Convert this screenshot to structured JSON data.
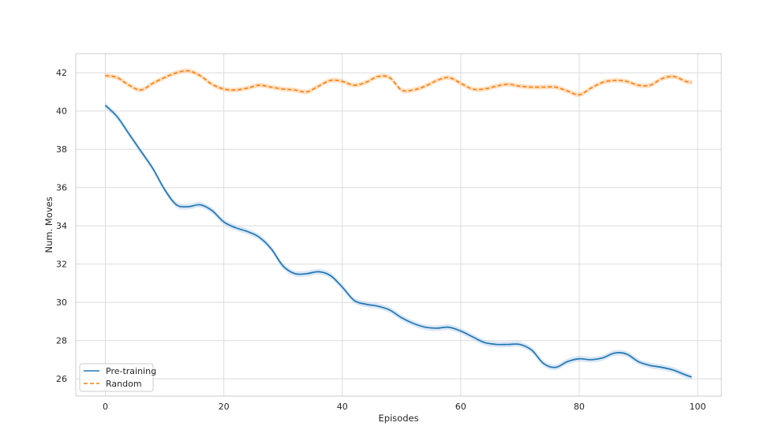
{
  "chart_data": {
    "type": "line",
    "title": "",
    "xlabel": "Episodes",
    "ylabel": "Num. Moves",
    "xlim": [
      -5,
      104
    ],
    "ylim": [
      25.1,
      43.0
    ],
    "xticks": [
      0,
      20,
      40,
      60,
      80,
      100
    ],
    "yticks": [
      26,
      28,
      30,
      32,
      34,
      36,
      38,
      40,
      42
    ],
    "grid": true,
    "legend_position": "lower-left",
    "series": [
      {
        "name": "Pre-training",
        "color": "#1f77b4",
        "dash": "solid",
        "band_color": "#aec7e8",
        "band_halfwidth": 0.15,
        "x": [
          0,
          2,
          4,
          6,
          8,
          10,
          12,
          14,
          16,
          18,
          20,
          22,
          24,
          26,
          28,
          30,
          32,
          34,
          36,
          38,
          40,
          42,
          44,
          46,
          48,
          50,
          52,
          54,
          56,
          58,
          60,
          62,
          64,
          66,
          68,
          70,
          72,
          74,
          76,
          78,
          80,
          82,
          84,
          86,
          88,
          90,
          92,
          94,
          96,
          98,
          99
        ],
        "y": [
          40.3,
          39.7,
          38.8,
          37.9,
          37.0,
          35.9,
          35.1,
          35.0,
          35.1,
          34.8,
          34.2,
          33.9,
          33.7,
          33.4,
          32.8,
          31.9,
          31.5,
          31.5,
          31.6,
          31.4,
          30.8,
          30.1,
          29.9,
          29.8,
          29.6,
          29.2,
          28.9,
          28.7,
          28.65,
          28.7,
          28.5,
          28.2,
          27.9,
          27.8,
          27.8,
          27.8,
          27.5,
          26.8,
          26.6,
          26.9,
          27.05,
          27.0,
          27.1,
          27.35,
          27.3,
          26.9,
          26.7,
          26.6,
          26.45,
          26.2,
          26.1
        ]
      },
      {
        "name": "Random",
        "color": "#ff7f0e",
        "dash": "dashed",
        "band_color": "#ffbb78",
        "band_halfwidth": 0.12,
        "x": [
          0,
          2,
          4,
          6,
          8,
          10,
          12,
          14,
          16,
          18,
          20,
          22,
          24,
          26,
          28,
          30,
          32,
          34,
          36,
          38,
          40,
          42,
          44,
          46,
          48,
          50,
          52,
          54,
          56,
          58,
          60,
          62,
          64,
          66,
          68,
          70,
          72,
          74,
          76,
          78,
          80,
          82,
          84,
          86,
          88,
          90,
          92,
          94,
          96,
          98,
          99
        ],
        "y": [
          41.85,
          41.75,
          41.35,
          41.1,
          41.45,
          41.75,
          42.0,
          42.1,
          41.85,
          41.4,
          41.15,
          41.1,
          41.2,
          41.35,
          41.25,
          41.15,
          41.1,
          41.0,
          41.3,
          41.6,
          41.55,
          41.35,
          41.5,
          41.8,
          41.75,
          41.1,
          41.1,
          41.3,
          41.6,
          41.75,
          41.45,
          41.15,
          41.15,
          41.3,
          41.4,
          41.3,
          41.25,
          41.25,
          41.25,
          41.05,
          40.85,
          41.2,
          41.5,
          41.6,
          41.55,
          41.35,
          41.35,
          41.7,
          41.8,
          41.55,
          41.5
        ]
      }
    ]
  }
}
